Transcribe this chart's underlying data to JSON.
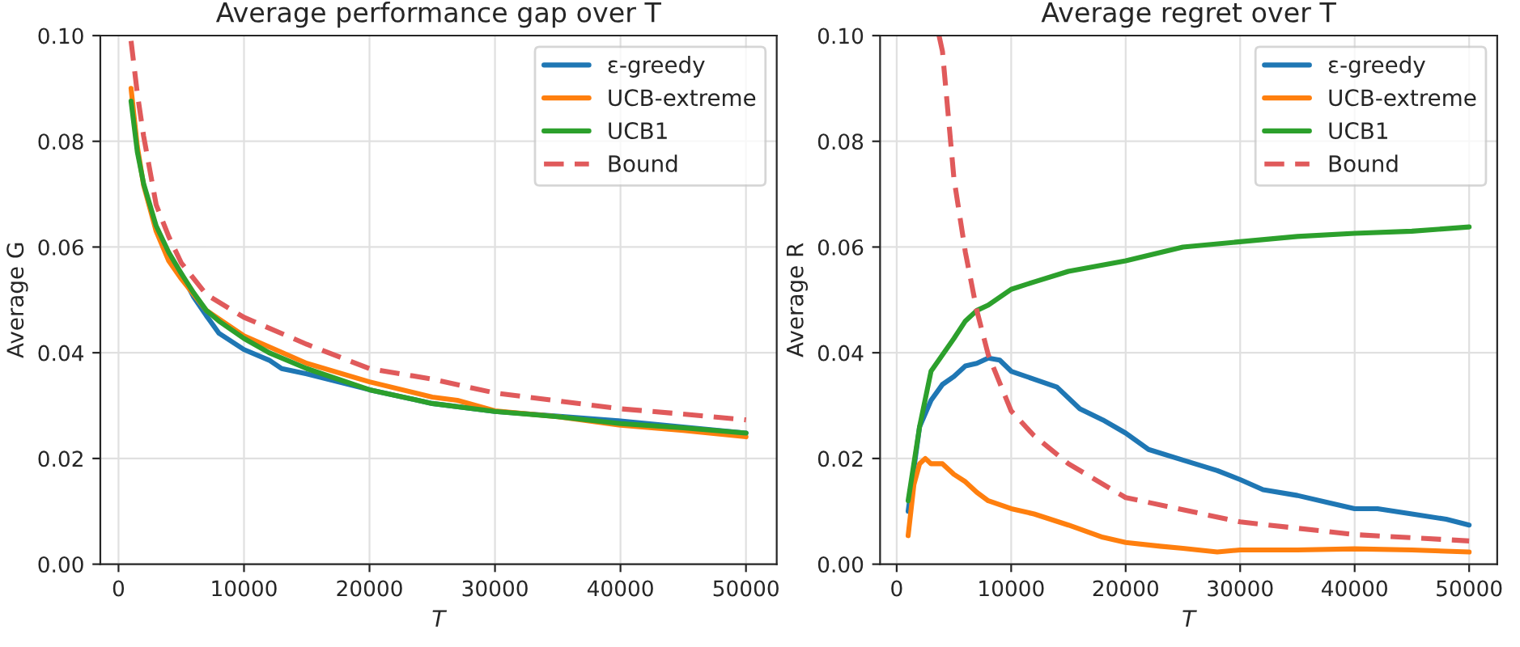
{
  "chart_data": [
    {
      "type": "line",
      "title": "Average performance gap over T",
      "xlabel": "T",
      "ylabel": "Average G",
      "xlim": [
        -1450,
        52450
      ],
      "ylim": [
        0,
        0.1
      ],
      "xticks": [
        0,
        10000,
        20000,
        30000,
        40000,
        50000
      ],
      "yticks": [
        {
          "value": 0,
          "label": "0.00"
        },
        {
          "value": 0.02,
          "label": "0.02"
        },
        {
          "value": 0.04,
          "label": "0.04"
        },
        {
          "value": 0.06,
          "label": "0.06"
        },
        {
          "value": 0.08,
          "label": "0.08"
        },
        {
          "value": 0.1,
          "label": "0.10"
        }
      ],
      "grid": true,
      "legend": "top right",
      "marker": "none",
      "series": [
        {
          "name": "ε-greedy",
          "color": "#1f77b4",
          "x": [
            5000,
            6000,
            7000,
            8000,
            10000,
            12000,
            13000,
            15000,
            20000,
            25000,
            30000,
            40000,
            50000
          ],
          "values": [
            0.055,
            0.0505,
            0.047,
            0.0437,
            0.0406,
            0.0386,
            0.037,
            0.036,
            0.033,
            0.0304,
            0.0289,
            0.0271,
            0.0248
          ]
        },
        {
          "name": "UCB-extreme",
          "color": "#ff7f0e",
          "x": [
            1000,
            1500,
            2000,
            3000,
            4000,
            5000,
            7000,
            10000,
            15000,
            20000,
            25000,
            27000,
            30000,
            35000,
            40000,
            45000,
            50000
          ],
          "values": [
            0.09,
            0.079,
            0.0717,
            0.063,
            0.0574,
            0.054,
            0.048,
            0.0432,
            0.038,
            0.0345,
            0.0316,
            0.031,
            0.029,
            0.0279,
            0.0263,
            0.0253,
            0.0241
          ]
        },
        {
          "name": "UCB1",
          "color": "#2ca02c",
          "x": [
            1000,
            1500,
            2000,
            3000,
            4000,
            5000,
            6000,
            7000,
            8000,
            10000,
            12000,
            15000,
            20000,
            25000,
            30000,
            35000,
            40000,
            45000,
            50000
          ],
          "values": [
            0.0876,
            0.078,
            0.072,
            0.064,
            0.059,
            0.055,
            0.0513,
            0.048,
            0.046,
            0.0427,
            0.04,
            0.037,
            0.033,
            0.0304,
            0.0289,
            0.0279,
            0.0266,
            0.0258,
            0.0248
          ]
        },
        {
          "name": "Bound",
          "color": "#e05a5b",
          "line_style": "dashed",
          "x": [
            1000,
            1500,
            2000,
            3000,
            4000,
            5000,
            7000,
            10000,
            15000,
            20000,
            25000,
            30000,
            35000,
            40000,
            45000,
            50000
          ],
          "values": [
            0.099,
            0.089,
            0.081,
            0.068,
            0.062,
            0.057,
            0.051,
            0.0467,
            0.0416,
            0.037,
            0.035,
            0.0324,
            0.0309,
            0.0294,
            0.0284,
            0.0273
          ]
        }
      ]
    },
    {
      "type": "line",
      "title": "Average regret over T",
      "xlabel": "T",
      "ylabel": "Average R",
      "xlim": [
        -1450,
        52450
      ],
      "ylim": [
        0,
        0.1
      ],
      "xticks": [
        0,
        10000,
        20000,
        30000,
        40000,
        50000
      ],
      "yticks": [
        {
          "value": 0,
          "label": "0.00"
        },
        {
          "value": 0.02,
          "label": "0.02"
        },
        {
          "value": 0.04,
          "label": "0.04"
        },
        {
          "value": 0.06,
          "label": "0.06"
        },
        {
          "value": 0.08,
          "label": "0.08"
        },
        {
          "value": 0.1,
          "label": "0.10"
        }
      ],
      "grid": true,
      "legend": "top right",
      "marker": "none",
      "series": [
        {
          "name": "ε-greedy",
          "color": "#1f77b4",
          "x": [
            1000,
            1500,
            2000,
            3000,
            4000,
            5000,
            6000,
            7000,
            8000,
            9000,
            10000,
            12000,
            14000,
            16000,
            18000,
            20000,
            22000,
            25000,
            28000,
            30000,
            32000,
            35000,
            38000,
            40000,
            42000,
            45000,
            48000,
            50000
          ],
          "values": [
            0.01,
            0.018,
            0.026,
            0.031,
            0.034,
            0.0355,
            0.0375,
            0.038,
            0.039,
            0.0386,
            0.0365,
            0.035,
            0.0335,
            0.0294,
            0.0273,
            0.0248,
            0.0217,
            0.0197,
            0.0177,
            0.016,
            0.0141,
            0.013,
            0.0115,
            0.0105,
            0.0105,
            0.0095,
            0.0085,
            0.0074
          ]
        },
        {
          "name": "UCB-extreme",
          "color": "#ff7f0e",
          "x": [
            1000,
            1500,
            2000,
            2500,
            3000,
            4000,
            5000,
            6000,
            7000,
            8000,
            10000,
            12000,
            15000,
            18000,
            20000,
            23000,
            25000,
            28000,
            30000,
            35000,
            40000,
            45000,
            50000
          ],
          "values": [
            0.0054,
            0.015,
            0.019,
            0.02,
            0.019,
            0.019,
            0.017,
            0.0156,
            0.0136,
            0.012,
            0.0105,
            0.0095,
            0.0074,
            0.0051,
            0.0041,
            0.0034,
            0.003,
            0.0023,
            0.0027,
            0.0027,
            0.0029,
            0.0027,
            0.0023
          ]
        },
        {
          "name": "UCB1",
          "color": "#2ca02c",
          "x": [
            1000,
            2000,
            3000,
            4000,
            5000,
            6000,
            7000,
            8000,
            10000,
            12000,
            15000,
            20000,
            25000,
            30000,
            35000,
            40000,
            45000,
            50000
          ],
          "values": [
            0.012,
            0.026,
            0.0365,
            0.0396,
            0.0427,
            0.046,
            0.048,
            0.049,
            0.052,
            0.0534,
            0.0554,
            0.0574,
            0.06,
            0.061,
            0.062,
            0.0626,
            0.063,
            0.0638
          ]
        },
        {
          "name": "Bound",
          "color": "#e05a5b",
          "line_style": "dashed",
          "x": [
            3700,
            4000,
            5000,
            6000,
            7000,
            8000,
            10000,
            12000,
            15000,
            20000,
            30000,
            40000,
            50000
          ],
          "values": [
            0.1,
            0.097,
            0.073,
            0.059,
            0.048,
            0.0396,
            0.029,
            0.0243,
            0.019,
            0.0126,
            0.008,
            0.0056,
            0.0044
          ]
        }
      ]
    }
  ]
}
